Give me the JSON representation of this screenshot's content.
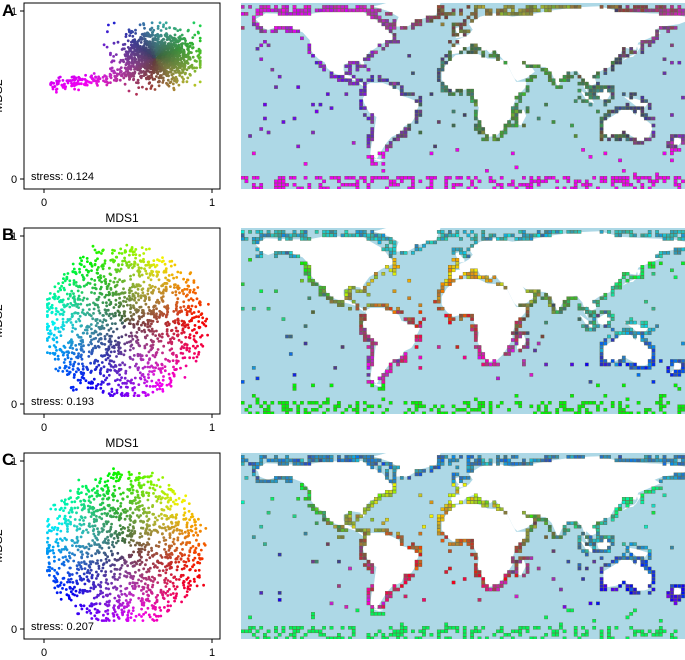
{
  "chart_data": [
    {
      "type": "scatter",
      "panel": "A",
      "xlabel": "MDS1",
      "ylabel": "MDS2",
      "xlim": [
        0,
        1
      ],
      "ylim": [
        0,
        1
      ],
      "x_ticks": [
        "0",
        "1"
      ],
      "y_ticks": [
        "0",
        "1"
      ],
      "annotation": "stress: 0.124",
      "point_cloud": {
        "approx_points": 1400,
        "extent_x": [
          0.04,
          0.93
        ],
        "extent_y": [
          0.42,
          0.93
        ],
        "shape": "dense cluster on the right with a thin tail extending left",
        "color_mapping": "colour encodes position in MDS space (2D colour wheel)"
      },
      "map": {
        "content": "world map of ocean grid cells coloured by their MDS position",
        "dominant_colors": [
          "#3a9a1e",
          "#7a8a20",
          "#2a7a50",
          "#8a2aaa"
        ]
      }
    },
    {
      "type": "scatter",
      "panel": "B",
      "xlabel": "MDS1",
      "ylabel": "MDS2",
      "xlim": [
        0,
        1
      ],
      "ylim": [
        0,
        1
      ],
      "x_ticks": [
        "0",
        "1"
      ],
      "y_ticks": [
        "0",
        "1"
      ],
      "annotation": "stress: 0.193",
      "point_cloud": {
        "approx_points": 1400,
        "extent_x": [
          0.02,
          0.99
        ],
        "extent_y": [
          0.06,
          0.97
        ],
        "shape": "broad roughly circular cloud",
        "color_mapping": "colour encodes position in MDS space (2D colour wheel)"
      },
      "map": {
        "content": "world map of ocean grid cells coloured by their MDS position",
        "dominant_colors": [
          "#8a2aaa",
          "#2a7a6a",
          "#b0205a",
          "#3a9a1e"
        ]
      }
    },
    {
      "type": "scatter",
      "panel": "C",
      "xlabel": "MDS1",
      "ylabel": "MDS2",
      "xlim": [
        0,
        1
      ],
      "ylim": [
        0,
        1
      ],
      "x_ticks": [
        "0",
        "1"
      ],
      "y_ticks": [
        "0",
        "1"
      ],
      "annotation": "stress: 0.207",
      "point_cloud": {
        "approx_points": 1400,
        "extent_x": [
          0.03,
          0.99
        ],
        "extent_y": [
          0.04,
          0.98
        ],
        "shape": "broad roughly circular cloud",
        "color_mapping": "colour encodes position in MDS space (2D colour wheel)"
      },
      "map": {
        "content": "world map of ocean grid cells coloured by their MDS position",
        "dominant_colors": [
          "#8a2aaa",
          "#2a7a6a",
          "#b02040",
          "#8a8a20"
        ]
      }
    }
  ],
  "colors": {
    "ocean": "#add8e6",
    "land": "#ffffff",
    "panel_border": "#000000"
  }
}
